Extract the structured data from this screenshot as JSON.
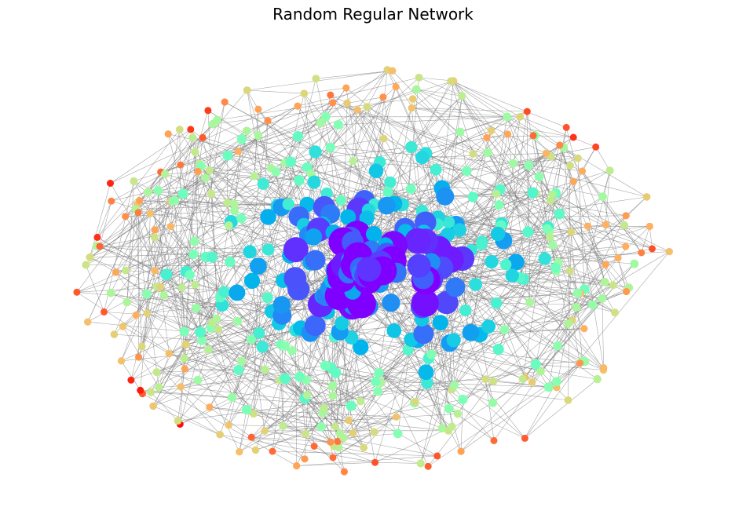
{
  "chart_data": {
    "type": "network",
    "title": "Random Regular Network",
    "layout": "spring",
    "node_count": 500,
    "degree": 5,
    "axes": "off",
    "edge_color": "#808080",
    "node_colormap": "rainbow",
    "node_size_encodes": "centrality",
    "hub_color": "#7000f8",
    "low_color": "#f81400"
  }
}
